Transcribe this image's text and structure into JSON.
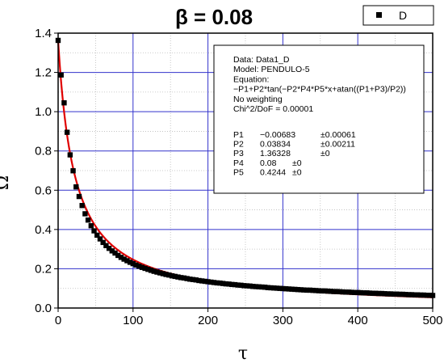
{
  "chart_data": {
    "type": "scatter",
    "title": "β = 0.08",
    "xlabel": "τ",
    "ylabel": "Ω",
    "xlim": [
      0,
      500
    ],
    "ylim": [
      0,
      1.4
    ],
    "xticks": [
      0,
      100,
      200,
      300,
      400,
      500
    ],
    "yticks": [
      0.0,
      0.2,
      0.4,
      0.6,
      0.8,
      1.0,
      1.2,
      1.4
    ],
    "grid": true,
    "legend": {
      "placement": "top-right",
      "entries": [
        {
          "label": "D",
          "marker": "square"
        }
      ]
    },
    "series": [
      {
        "name": "D",
        "kind": "points",
        "marker": "square",
        "color": "#000000",
        "x": [
          0,
          4,
          8,
          12,
          16,
          20,
          24,
          28,
          32,
          36,
          40,
          44,
          48,
          52,
          56,
          60,
          64,
          68,
          72,
          76,
          80,
          84,
          88,
          92,
          96,
          100,
          104,
          108,
          112,
          116,
          120,
          124,
          128,
          132,
          136,
          140,
          144,
          148,
          152,
          156,
          160,
          164,
          168,
          172,
          176,
          180,
          184,
          188,
          192,
          196,
          200,
          204,
          208,
          212,
          216,
          220,
          224,
          228,
          232,
          236,
          240,
          244,
          248,
          252,
          256,
          260,
          264,
          268,
          272,
          276,
          280,
          284,
          288,
          292,
          296,
          300,
          304,
          308,
          312,
          316,
          320,
          324,
          328,
          332,
          336,
          340,
          344,
          348,
          352,
          356,
          360,
          364,
          368,
          372,
          376,
          380,
          384,
          388,
          392,
          396,
          400,
          404,
          408,
          412,
          416,
          420,
          424,
          428,
          432,
          436,
          440,
          444,
          448,
          452,
          456,
          460,
          464,
          468,
          472,
          476,
          480,
          484,
          488,
          492,
          496,
          500
        ],
        "y": [
          1.363,
          1.187,
          1.045,
          0.895,
          0.78,
          0.699,
          0.617,
          0.568,
          0.522,
          0.48,
          0.448,
          0.419,
          0.393,
          0.371,
          0.352,
          0.334,
          0.318,
          0.304,
          0.291,
          0.28,
          0.268,
          0.258,
          0.249,
          0.241,
          0.233,
          0.226,
          0.219,
          0.213,
          0.207,
          0.202,
          0.197,
          0.192,
          0.187,
          0.183,
          0.179,
          0.175,
          0.171,
          0.168,
          0.164,
          0.161,
          0.158,
          0.155,
          0.153,
          0.15,
          0.147,
          0.145,
          0.143,
          0.14,
          0.138,
          0.136,
          0.134,
          0.132,
          0.13,
          0.128,
          0.127,
          0.125,
          0.123,
          0.122,
          0.12,
          0.119,
          0.117,
          0.116,
          0.114,
          0.113,
          0.112,
          0.11,
          0.109,
          0.108,
          0.107,
          0.106,
          0.104,
          0.103,
          0.102,
          0.101,
          0.1,
          0.099,
          0.098,
          0.097,
          0.096,
          0.095,
          0.094,
          0.093,
          0.092,
          0.091,
          0.091,
          0.09,
          0.089,
          0.088,
          0.087,
          0.087,
          0.086,
          0.085,
          0.084,
          0.084,
          0.083,
          0.082,
          0.081,
          0.081,
          0.08,
          0.079,
          0.079,
          0.078,
          0.077,
          0.077,
          0.076,
          0.075,
          0.075,
          0.074,
          0.074,
          0.073,
          0.072,
          0.072,
          0.071,
          0.071,
          0.07,
          0.07,
          0.069,
          0.068,
          0.068,
          0.067,
          0.067,
          0.066,
          0.066,
          0.065,
          0.065,
          0.064
        ]
      },
      {
        "kind": "fit-line",
        "color": "#e00000",
        "model": {
          "P1": -0.00683,
          "P2": 0.03834,
          "P3": 1.36328,
          "P4": 0.08,
          "P5": 0.4244
        }
      }
    ],
    "annotation": {
      "lines": [
        "Data: Data1_D",
        "Model: PENDULO-5",
        "Equation:",
        "−P1+P2*tan(−P2*P4*P5*x+atan((P1+P3)/P2))",
        "No weighting",
        "Chi^2/DoF       = 0.00001"
      ],
      "params": [
        {
          "name": "P1",
          "value": "−0.00683",
          "error": "±0.00061"
        },
        {
          "name": "P2",
          "value": "0.03834",
          "error": "±0.00211"
        },
        {
          "name": "P3",
          "value": "1.36328",
          "error": "±0"
        },
        {
          "name": "P4",
          "value": "0.08",
          "error": "±0"
        },
        {
          "name": "P5",
          "value": "0.4244",
          "error": "±0"
        }
      ]
    }
  }
}
